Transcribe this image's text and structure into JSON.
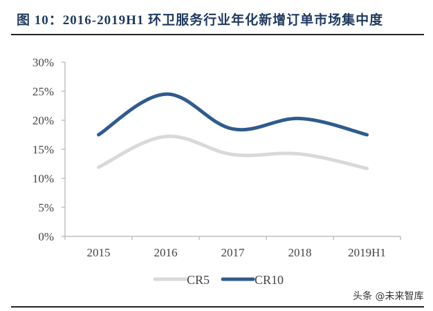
{
  "header": {
    "title": "图 10：2016-2019H1 环卫服务行业年化新增订单市场集中度"
  },
  "watermark": "头条 @未来智库",
  "colors": {
    "cr5": "#d9d9d9",
    "cr10": "#2f5b8e",
    "title": "#1f3a5f",
    "axis": "#bfbfbf"
  },
  "chart_data": {
    "type": "line",
    "title": "图 10：2016-2019H1 环卫服务行业年化新增订单市场集中度",
    "xlabel": "",
    "ylabel": "",
    "categories": [
      "2015",
      "2016",
      "2017",
      "2018",
      "2019H1"
    ],
    "yticks": [
      "0%",
      "5%",
      "10%",
      "15%",
      "20%",
      "25%",
      "30%"
    ],
    "ylim": [
      0,
      30
    ],
    "grid": false,
    "smooth": true,
    "legend_position": "bottom",
    "series": [
      {
        "name": "CR5",
        "values": [
          11.9,
          17.2,
          14.1,
          14.2,
          11.7
        ],
        "color": "#d9d9d9"
      },
      {
        "name": "CR10",
        "values": [
          17.5,
          24.5,
          18.5,
          20.3,
          17.5
        ],
        "color": "#2f5b8e"
      }
    ]
  }
}
